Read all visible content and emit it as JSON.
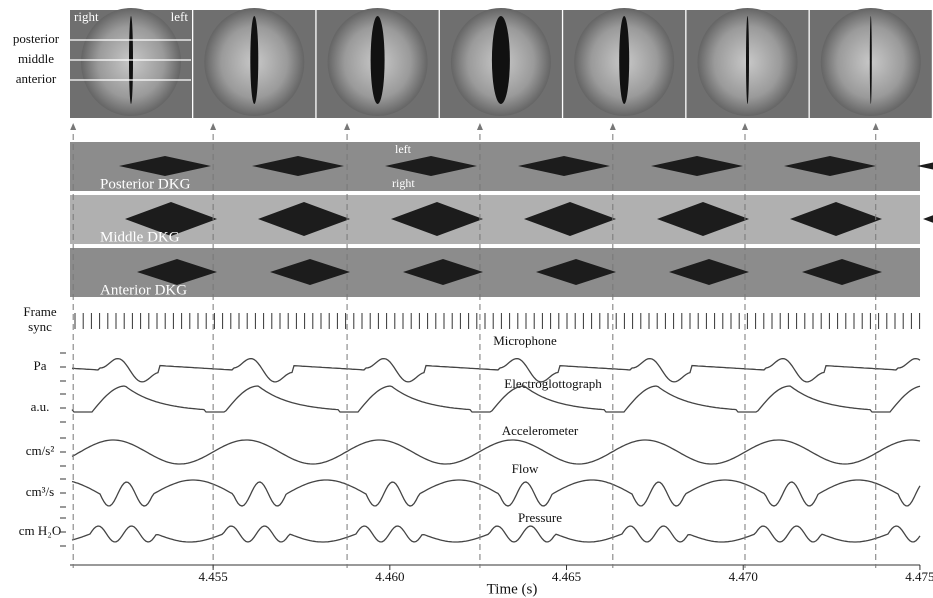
{
  "frame_labels": {
    "right": "right",
    "left": "left",
    "posterior": "posterior",
    "middle": "middle",
    "anterior": "anterior"
  },
  "dkg": {
    "strips": [
      "Posterior DKG",
      "Middle DKG",
      "Anterior DKG"
    ],
    "left": "left",
    "right": "right"
  },
  "frame_sync": [
    "Frame",
    "sync"
  ],
  "traces": [
    {
      "name": "Microphone",
      "unit": "Pa"
    },
    {
      "name": "Electroglottograph",
      "unit": "a.u."
    },
    {
      "name": "Accelerometer",
      "unit": "cm/s²"
    },
    {
      "name": "Flow",
      "unit": "cm³/s"
    },
    {
      "name": "Pressure",
      "unit": "cm H₂O"
    }
  ],
  "time_axis": {
    "label": "Time (s)",
    "xlim": [
      4.45095,
      4.47537
    ],
    "xticks": [
      4.455,
      {
        "value": 4.46,
        "label": "4.460"
      },
      4.465,
      {
        "value": 4.47,
        "label": "4.470"
      },
      4.475
    ],
    "frame_times": [
      4.45104,
      4.455,
      4.45879,
      4.46255,
      4.46631,
      4.47005,
      4.47375
    ]
  }
}
